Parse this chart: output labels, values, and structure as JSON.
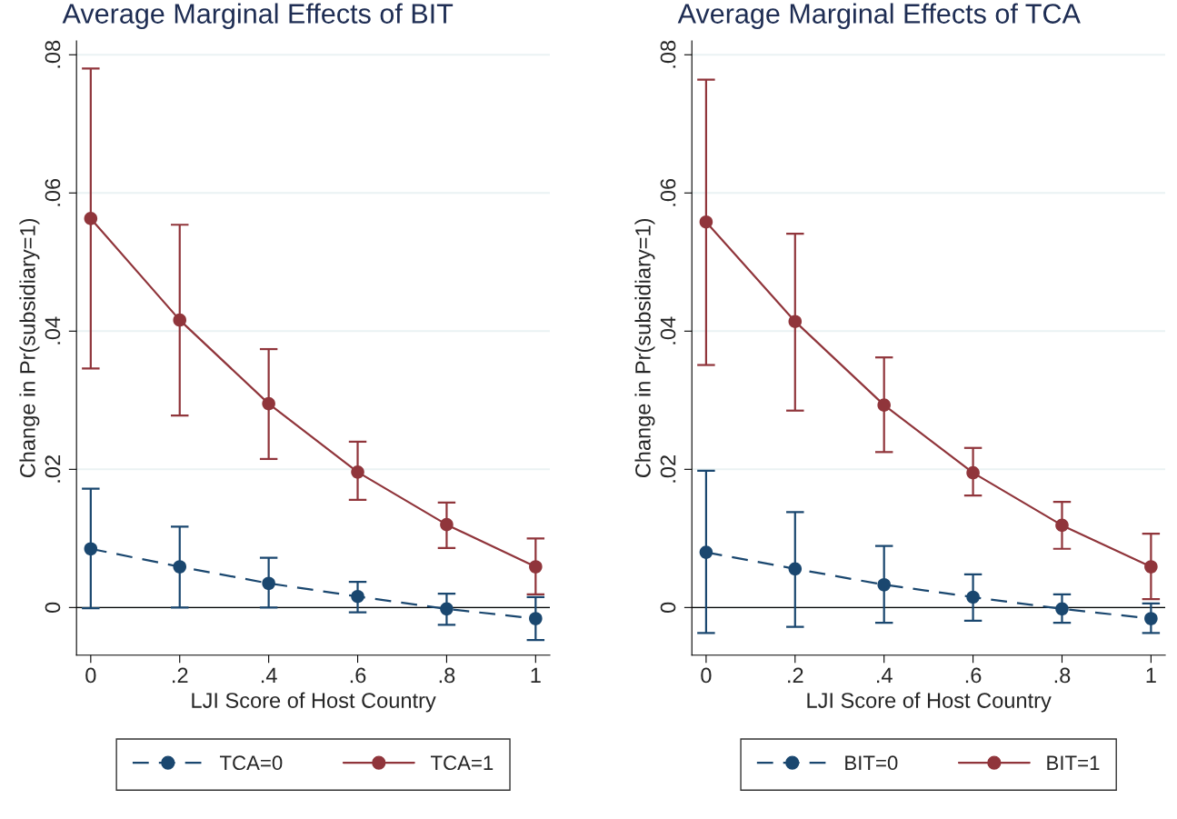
{
  "chart_data": [
    {
      "type": "line",
      "title": "Average Marginal Effects of BIT",
      "xlabel": "LJI Score of Host Country",
      "ylabel": "Change in Pr(subsidiary=1)",
      "x": [
        0,
        0.2,
        0.4,
        0.6,
        0.8,
        1
      ],
      "xlim": [
        -0.032,
        1.032
      ],
      "xticks": [
        0,
        {
          "value": 0.2,
          "label": ".2"
        },
        {
          "value": 0.4,
          "label": ".4"
        },
        {
          "value": 0.6,
          "label": ".6"
        },
        {
          "value": 0.8,
          "label": ".8"
        },
        1
      ],
      "ylim": [
        -0.0069,
        0.082
      ],
      "yticks": [
        0,
        {
          "value": 0.02,
          "label": ".02"
        },
        {
          "value": 0.04,
          "label": ".04"
        },
        {
          "value": 0.06,
          "label": ".06"
        },
        {
          "value": 0.08,
          "label": ".08"
        }
      ],
      "grid": "y",
      "legend": "bottom",
      "marker": "circle",
      "ref_lines": [
        {
          "axis": "y",
          "value": 0,
          "color": "#000000"
        }
      ],
      "series": [
        {
          "name": "TCA=0",
          "color": "#1a476f",
          "line_style": "dashed",
          "values": [
            0.0085,
            0.0059,
            0.0035,
            0.0016,
            -0.0002,
            -0.0016
          ],
          "errors": [
            [
              -0.0001,
              0.0172
            ],
            [
              0,
              0.0117
            ],
            [
              0,
              0.0072
            ],
            [
              -0.0007,
              0.0037
            ],
            [
              -0.0025,
              0.002
            ],
            [
              -0.0047,
              0.0015
            ]
          ]
        },
        {
          "name": "TCA=1",
          "color": "#90353b",
          "line_style": "solid",
          "values": [
            0.0563,
            0.0416,
            0.0295,
            0.0196,
            0.012,
            0.0059
          ],
          "errors": [
            [
              0.0346,
              0.078
            ],
            [
              0.0278,
              0.0554
            ],
            [
              0.0215,
              0.0374
            ],
            [
              0.0156,
              0.024
            ],
            [
              0.0086,
              0.0152
            ],
            [
              0.0019,
              0.01
            ]
          ]
        }
      ]
    },
    {
      "type": "line",
      "title": "Average Marginal Effects of TCA",
      "xlabel": "LJI Score of Host Country",
      "ylabel": "Change in Pr(subsidiary=1)",
      "x": [
        0,
        0.2,
        0.4,
        0.6,
        0.8,
        1
      ],
      "xlim": [
        -0.032,
        1.032
      ],
      "xticks": [
        0,
        {
          "value": 0.2,
          "label": ".2"
        },
        {
          "value": 0.4,
          "label": ".4"
        },
        {
          "value": 0.6,
          "label": ".6"
        },
        {
          "value": 0.8,
          "label": ".8"
        },
        1
      ],
      "ylim": [
        -0.0069,
        0.082
      ],
      "yticks": [
        0,
        {
          "value": 0.02,
          "label": ".02"
        },
        {
          "value": 0.04,
          "label": ".04"
        },
        {
          "value": 0.06,
          "label": ".06"
        },
        {
          "value": 0.08,
          "label": ".08"
        }
      ],
      "grid": "y",
      "legend": "bottom",
      "marker": "circle",
      "ref_lines": [
        {
          "axis": "y",
          "value": 0,
          "color": "#000000"
        }
      ],
      "series": [
        {
          "name": "BIT=0",
          "color": "#1a476f",
          "line_style": "dashed",
          "values": [
            0.008,
            0.0056,
            0.0033,
            0.0015,
            -0.0002,
            -0.0016
          ],
          "errors": [
            [
              -0.0037,
              0.0198
            ],
            [
              -0.0028,
              0.0138
            ],
            [
              -0.0022,
              0.0089
            ],
            [
              -0.0019,
              0.0048
            ],
            [
              -0.0022,
              0.0019
            ],
            [
              -0.0037,
              0.0006
            ]
          ]
        },
        {
          "name": "BIT=1",
          "color": "#90353b",
          "line_style": "solid",
          "values": [
            0.0558,
            0.0414,
            0.0293,
            0.0195,
            0.0119,
            0.0059
          ],
          "errors": [
            [
              0.0351,
              0.0764
            ],
            [
              0.0285,
              0.0541
            ],
            [
              0.0225,
              0.0362
            ],
            [
              0.0162,
              0.0231
            ],
            [
              0.0085,
              0.0153
            ],
            [
              0.0012,
              0.0107
            ]
          ]
        }
      ]
    }
  ]
}
